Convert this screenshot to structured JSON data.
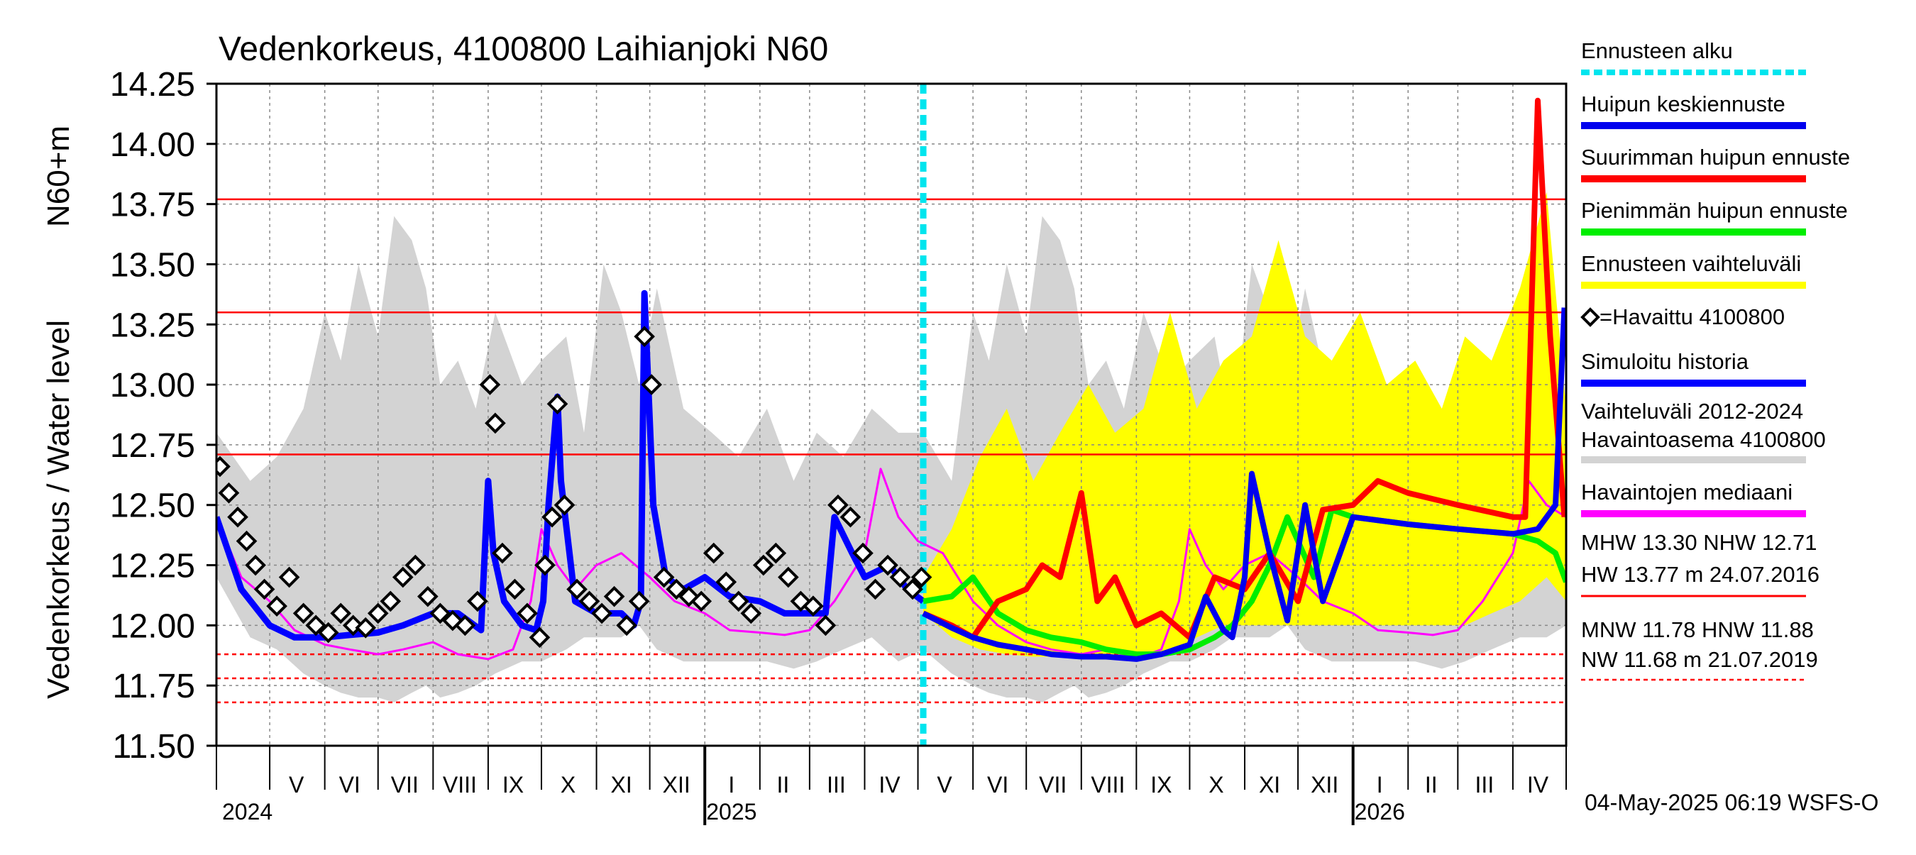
{
  "chart_data": {
    "type": "line",
    "title": "Vedenkorkeus, 4100800 Laihianjoki N60",
    "ylabel": "Vedenkorkeus / Water level",
    "ylabel_unit": "N60+m",
    "ylim": [
      11.5,
      14.25
    ],
    "y_ticks": [
      "11.50",
      "11.75",
      "12.00",
      "12.25",
      "12.50",
      "12.75",
      "13.00",
      "13.25",
      "13.50",
      "13.75",
      "14.00",
      "14.25"
    ],
    "x_range": [
      "2024-04-01",
      "2026-05-01"
    ],
    "forecast_start": "2025-05-04",
    "month_labels": [
      {
        "label": "V",
        "date": "2024-05-16"
      },
      {
        "label": "VI",
        "date": "2024-06-15"
      },
      {
        "label": "VII",
        "date": "2024-07-16"
      },
      {
        "label": "VIII",
        "date": "2024-08-16"
      },
      {
        "label": "IX",
        "date": "2024-09-15"
      },
      {
        "label": "X",
        "date": "2024-10-16"
      },
      {
        "label": "XI",
        "date": "2024-11-15"
      },
      {
        "label": "XII",
        "date": "2024-12-16"
      },
      {
        "label": "I",
        "date": "2025-01-16"
      },
      {
        "label": "II",
        "date": "2025-02-14"
      },
      {
        "label": "III",
        "date": "2025-03-16"
      },
      {
        "label": "IV",
        "date": "2025-04-15"
      },
      {
        "label": "V",
        "date": "2025-05-16"
      },
      {
        "label": "VI",
        "date": "2025-06-15"
      },
      {
        "label": "VII",
        "date": "2025-07-16"
      },
      {
        "label": "VIII",
        "date": "2025-08-16"
      },
      {
        "label": "IX",
        "date": "2025-09-15"
      },
      {
        "label": "X",
        "date": "2025-10-16"
      },
      {
        "label": "XI",
        "date": "2025-11-15"
      },
      {
        "label": "XII",
        "date": "2025-12-16"
      },
      {
        "label": "I",
        "date": "2026-01-16"
      },
      {
        "label": "II",
        "date": "2026-02-14"
      },
      {
        "label": "III",
        "date": "2026-03-16"
      },
      {
        "label": "IV",
        "date": "2026-04-15"
      }
    ],
    "year_labels": [
      {
        "label": "2024",
        "date": "2024-04-01"
      },
      {
        "label": "2025",
        "date": "2025-01-01"
      },
      {
        "label": "2026",
        "date": "2026-01-01"
      }
    ],
    "year_boundaries": [
      "2025-01-01",
      "2026-01-01"
    ],
    "reference_lines": [
      {
        "name": "HW",
        "value": 13.77,
        "style": "solid"
      },
      {
        "name": "MHW",
        "value": 13.3,
        "style": "solid"
      },
      {
        "name": "NHW",
        "value": 12.71,
        "style": "solid"
      },
      {
        "name": "HNW",
        "value": 11.88,
        "style": "dashed"
      },
      {
        "name": "MNW",
        "value": 11.78,
        "style": "dashed"
      },
      {
        "name": "NW",
        "value": 11.68,
        "style": "dashed"
      }
    ],
    "history_band": {
      "x": [
        "2024-04-01",
        "2024-04-20",
        "2024-05-05",
        "2024-05-20",
        "2024-06-01",
        "2024-06-10",
        "2024-06-20",
        "2024-07-01",
        "2024-07-10",
        "2024-07-20",
        "2024-07-28",
        "2024-08-05",
        "2024-08-15",
        "2024-08-25",
        "2024-09-05",
        "2024-09-20",
        "2024-10-01",
        "2024-10-15",
        "2024-10-25",
        "2024-11-05",
        "2024-11-15",
        "2024-11-25",
        "2024-12-05",
        "2024-12-20",
        "2025-01-05",
        "2025-01-20",
        "2025-02-05",
        "2025-02-20",
        "2025-03-05",
        "2025-03-20",
        "2025-04-05",
        "2025-04-20",
        "2025-05-04",
        "2025-05-20",
        "2025-06-01",
        "2025-06-10",
        "2025-06-20",
        "2025-07-01",
        "2025-07-10",
        "2025-07-20",
        "2025-07-28",
        "2025-08-05",
        "2025-08-15",
        "2025-08-25",
        "2025-09-05",
        "2025-09-20",
        "2025-10-01",
        "2025-10-15",
        "2025-10-25",
        "2025-11-05",
        "2025-11-15",
        "2025-11-25",
        "2025-12-05",
        "2025-12-20",
        "2026-01-05",
        "2026-01-20",
        "2026-02-05",
        "2026-02-20",
        "2026-03-05",
        "2026-03-20",
        "2026-04-05",
        "2026-04-20",
        "2026-05-01"
      ],
      "upper": [
        12.8,
        12.6,
        12.7,
        12.9,
        13.3,
        13.1,
        13.5,
        13.2,
        13.7,
        13.6,
        13.4,
        13.0,
        13.1,
        12.9,
        13.3,
        13.0,
        13.1,
        13.2,
        12.8,
        13.5,
        13.3,
        13.0,
        13.4,
        12.9,
        12.8,
        12.7,
        12.9,
        12.6,
        12.8,
        12.7,
        12.9,
        12.8,
        12.8,
        12.6,
        13.3,
        13.1,
        13.5,
        13.2,
        13.7,
        13.6,
        13.4,
        13.0,
        13.1,
        12.9,
        13.3,
        13.0,
        13.1,
        13.2,
        12.8,
        13.5,
        13.3,
        13.0,
        13.4,
        12.9,
        12.8,
        12.7,
        12.9,
        12.6,
        12.8,
        12.7,
        13.0,
        12.9,
        12.8
      ],
      "lower": [
        12.2,
        11.95,
        11.9,
        11.8,
        11.75,
        11.72,
        11.7,
        11.7,
        11.68,
        11.72,
        11.75,
        11.7,
        11.72,
        11.75,
        11.8,
        11.85,
        11.85,
        11.9,
        11.95,
        11.95,
        11.95,
        12.0,
        11.9,
        11.85,
        11.85,
        11.85,
        11.85,
        11.82,
        11.85,
        11.9,
        11.95,
        11.85,
        11.9,
        11.8,
        11.75,
        11.72,
        11.7,
        11.7,
        11.68,
        11.72,
        11.75,
        11.7,
        11.72,
        11.75,
        11.8,
        11.85,
        11.85,
        11.9,
        11.95,
        11.95,
        11.95,
        12.0,
        11.9,
        11.85,
        11.85,
        11.85,
        11.85,
        11.82,
        11.85,
        11.9,
        11.95,
        11.95,
        12.0
      ]
    },
    "forecast_band": {
      "x": [
        "2025-05-04",
        "2025-05-20",
        "2025-06-05",
        "2025-06-20",
        "2025-07-05",
        "2025-07-20",
        "2025-08-05",
        "2025-08-20",
        "2025-09-05",
        "2025-09-20",
        "2025-10-05",
        "2025-10-20",
        "2025-11-05",
        "2025-11-20",
        "2025-12-05",
        "2025-12-20",
        "2026-01-05",
        "2026-01-20",
        "2026-02-05",
        "2026-02-20",
        "2026-03-05",
        "2026-03-20",
        "2026-04-05",
        "2026-04-20",
        "2026-05-01"
      ],
      "upper": [
        12.2,
        12.4,
        12.7,
        12.9,
        12.6,
        12.8,
        13.0,
        12.8,
        12.9,
        13.3,
        12.9,
        13.1,
        13.2,
        13.6,
        13.2,
        13.1,
        13.3,
        13.0,
        13.1,
        12.9,
        13.2,
        13.1,
        13.4,
        13.8,
        12.9
      ],
      "lower": [
        12.05,
        11.95,
        11.9,
        11.88,
        11.87,
        11.87,
        11.87,
        11.87,
        11.87,
        11.88,
        11.95,
        12.0,
        12.0,
        12.0,
        12.0,
        12.0,
        12.0,
        12.0,
        12.0,
        12.0,
        12.0,
        12.05,
        12.1,
        12.2,
        12.1
      ]
    },
    "series": [
      {
        "name": "Havaintojen mediaani",
        "color": "#ff00ff",
        "x": [
          "2024-04-01",
          "2024-04-15",
          "2024-05-01",
          "2024-05-15",
          "2024-06-01",
          "2024-06-15",
          "2024-07-01",
          "2024-07-15",
          "2024-08-01",
          "2024-08-15",
          "2024-09-01",
          "2024-09-15",
          "2024-09-25",
          "2024-10-01",
          "2024-10-10",
          "2024-10-20",
          "2024-11-01",
          "2024-11-15",
          "2024-12-01",
          "2024-12-15",
          "2025-01-01",
          "2025-01-15",
          "2025-02-01",
          "2025-02-15",
          "2025-03-01",
          "2025-03-15",
          "2025-04-01",
          "2025-04-10",
          "2025-04-20",
          "2025-05-01",
          "2025-05-15",
          "2025-06-01",
          "2025-06-15",
          "2025-07-01",
          "2025-07-15",
          "2025-08-01",
          "2025-08-15",
          "2025-09-01",
          "2025-09-15",
          "2025-09-25",
          "2025-10-01",
          "2025-10-10",
          "2025-10-20",
          "2025-11-01",
          "2025-11-15",
          "2025-12-01",
          "2025-12-15",
          "2026-01-01",
          "2026-01-15",
          "2026-02-01",
          "2026-02-15",
          "2026-03-01",
          "2026-03-15",
          "2026-04-01",
          "2026-04-10",
          "2026-04-20",
          "2026-05-01"
        ],
        "y": [
          12.45,
          12.2,
          12.1,
          11.98,
          11.92,
          11.9,
          11.88,
          11.9,
          11.93,
          11.88,
          11.86,
          11.9,
          12.1,
          12.4,
          12.25,
          12.15,
          12.25,
          12.3,
          12.2,
          12.1,
          12.05,
          11.98,
          11.97,
          11.96,
          11.98,
          12.1,
          12.3,
          12.65,
          12.45,
          12.35,
          12.3,
          12.1,
          12.0,
          11.93,
          11.9,
          11.88,
          11.9,
          11.86,
          11.9,
          12.1,
          12.4,
          12.25,
          12.15,
          12.25,
          12.3,
          12.2,
          12.1,
          12.05,
          11.98,
          11.97,
          11.96,
          11.98,
          12.1,
          12.3,
          12.6,
          12.5,
          12.45
        ]
      },
      {
        "name": "Havaittu 4100800",
        "color": "#000000",
        "marker": "diamond",
        "x": [
          "2024-04-03",
          "2024-04-08",
          "2024-04-13",
          "2024-04-18",
          "2024-04-23",
          "2024-04-28",
          "2024-05-05",
          "2024-05-12",
          "2024-05-20",
          "2024-05-27",
          "2024-06-03",
          "2024-06-10",
          "2024-06-17",
          "2024-06-24",
          "2024-07-01",
          "2024-07-08",
          "2024-07-15",
          "2024-07-22",
          "2024-07-29",
          "2024-08-05",
          "2024-08-12",
          "2024-08-19",
          "2024-08-26",
          "2024-09-02",
          "2024-09-05",
          "2024-09-09",
          "2024-09-16",
          "2024-09-23",
          "2024-09-30",
          "2024-10-03",
          "2024-10-07",
          "2024-10-10",
          "2024-10-14",
          "2024-10-21",
          "2024-10-28",
          "2024-11-04",
          "2024-11-11",
          "2024-11-18",
          "2024-11-25",
          "2024-11-28",
          "2024-12-02",
          "2024-12-09",
          "2024-12-16",
          "2024-12-23",
          "2024-12-30",
          "2025-01-06",
          "2025-01-13",
          "2025-01-20",
          "2025-01-27",
          "2025-02-03",
          "2025-02-10",
          "2025-02-17",
          "2025-02-24",
          "2025-03-03",
          "2025-03-10",
          "2025-03-17",
          "2025-03-24",
          "2025-03-31",
          "2025-04-07",
          "2025-04-14",
          "2025-04-21",
          "2025-04-28",
          "2025-05-03"
        ],
        "y": [
          12.66,
          12.55,
          12.45,
          12.35,
          12.25,
          12.15,
          12.08,
          12.2,
          12.05,
          12.0,
          11.97,
          12.05,
          12.0,
          11.99,
          12.05,
          12.1,
          12.2,
          12.25,
          12.12,
          12.05,
          12.02,
          12.0,
          12.1,
          13.0,
          12.84,
          12.3,
          12.15,
          12.05,
          11.95,
          12.25,
          12.45,
          12.92,
          12.5,
          12.15,
          12.1,
          12.05,
          12.12,
          12.0,
          12.1,
          13.2,
          13.0,
          12.2,
          12.15,
          12.12,
          12.1,
          12.3,
          12.18,
          12.1,
          12.05,
          12.25,
          12.3,
          12.2,
          12.1,
          12.08,
          12.0,
          12.5,
          12.45,
          12.3,
          12.15,
          12.25,
          12.2,
          12.15,
          12.2
        ]
      },
      {
        "name": "Simuloitu historia",
        "color": "#0000ff",
        "x": [
          "2024-04-01",
          "2024-04-15",
          "2024-05-01",
          "2024-05-15",
          "2024-06-01",
          "2024-06-15",
          "2024-07-01",
          "2024-07-15",
          "2024-08-01",
          "2024-08-15",
          "2024-08-28",
          "2024-09-01",
          "2024-09-04",
          "2024-09-10",
          "2024-09-20",
          "2024-09-28",
          "2024-10-02",
          "2024-10-05",
          "2024-10-10",
          "2024-10-12",
          "2024-10-20",
          "2024-11-01",
          "2024-11-15",
          "2024-11-22",
          "2024-11-26",
          "2024-11-28",
          "2024-12-03",
          "2024-12-10",
          "2024-12-20",
          "2025-01-01",
          "2025-01-15",
          "2025-02-01",
          "2025-02-15",
          "2025-03-01",
          "2025-03-10",
          "2025-03-15",
          "2025-03-25",
          "2025-04-01",
          "2025-04-15",
          "2025-04-25",
          "2025-05-04"
        ],
        "y": [
          12.45,
          12.15,
          12.0,
          11.95,
          11.95,
          11.96,
          11.97,
          12.0,
          12.05,
          12.05,
          11.98,
          12.6,
          12.3,
          12.1,
          12.0,
          11.98,
          12.1,
          12.5,
          12.95,
          12.6,
          12.1,
          12.05,
          12.05,
          12.0,
          12.1,
          13.38,
          12.5,
          12.2,
          12.15,
          12.2,
          12.12,
          12.1,
          12.05,
          12.05,
          12.05,
          12.45,
          12.3,
          12.2,
          12.25,
          12.15,
          12.1
        ]
      },
      {
        "name": "Pienimmän huipun ennuste",
        "color": "#00ee00",
        "x": [
          "2025-05-04",
          "2025-05-20",
          "2025-06-01",
          "2025-06-15",
          "2025-07-01",
          "2025-07-15",
          "2025-08-01",
          "2025-08-15",
          "2025-09-01",
          "2025-09-15",
          "2025-10-01",
          "2025-10-15",
          "2025-10-25",
          "2025-11-05",
          "2025-11-15",
          "2025-11-25",
          "2025-12-10",
          "2025-12-20",
          "2026-01-01",
          "2026-02-01",
          "2026-03-01",
          "2026-04-01",
          "2026-04-15",
          "2026-04-25",
          "2026-05-01"
        ],
        "y": [
          12.1,
          12.12,
          12.2,
          12.05,
          11.98,
          11.95,
          11.93,
          11.9,
          11.88,
          11.88,
          11.9,
          11.95,
          12.0,
          12.1,
          12.25,
          12.45,
          12.2,
          12.48,
          12.45,
          12.42,
          12.4,
          12.38,
          12.35,
          12.3,
          12.18
        ]
      },
      {
        "name": "Suurimman huipun ennuste",
        "color": "#ff0000",
        "x": [
          "2025-05-04",
          "2025-05-20",
          "2025-06-01",
          "2025-06-15",
          "2025-07-01",
          "2025-07-10",
          "2025-07-20",
          "2025-08-01",
          "2025-08-10",
          "2025-08-20",
          "2025-09-01",
          "2025-09-15",
          "2025-10-01",
          "2025-10-15",
          "2025-11-01",
          "2025-11-15",
          "2025-12-01",
          "2025-12-15",
          "2026-01-01",
          "2026-01-15",
          "2026-02-01",
          "2026-03-01",
          "2026-04-01",
          "2026-04-08",
          "2026-04-15",
          "2026-04-22",
          "2026-04-30"
        ],
        "y": [
          12.05,
          12.0,
          11.95,
          12.1,
          12.15,
          12.25,
          12.2,
          12.55,
          12.1,
          12.2,
          12.0,
          12.05,
          11.95,
          12.2,
          12.15,
          12.3,
          12.1,
          12.48,
          12.5,
          12.6,
          12.55,
          12.5,
          12.45,
          12.45,
          14.18,
          13.2,
          12.45
        ]
      },
      {
        "name": "Huipun keskiennuste",
        "color": "#0000ee",
        "x": [
          "2025-05-04",
          "2025-05-20",
          "2025-06-01",
          "2025-06-15",
          "2025-07-01",
          "2025-07-15",
          "2025-08-01",
          "2025-08-15",
          "2025-09-01",
          "2025-09-15",
          "2025-10-01",
          "2025-10-10",
          "2025-10-20",
          "2025-10-25",
          "2025-11-01",
          "2025-11-05",
          "2025-11-15",
          "2025-11-25",
          "2025-12-05",
          "2025-12-15",
          "2026-01-01",
          "2026-02-01",
          "2026-03-01",
          "2026-04-01",
          "2026-04-15",
          "2026-04-25",
          "2026-04-30"
        ],
        "y": [
          12.05,
          11.99,
          11.95,
          11.92,
          11.9,
          11.88,
          11.87,
          11.87,
          11.86,
          11.88,
          11.92,
          12.12,
          11.98,
          11.95,
          12.2,
          12.63,
          12.3,
          12.02,
          12.5,
          12.1,
          12.45,
          12.42,
          12.4,
          12.38,
          12.4,
          12.5,
          13.32
        ]
      }
    ],
    "legend": [
      {
        "label": "Ennusteen alku",
        "color": "#00e5ee",
        "style": "dashed"
      },
      {
        "label": "Huipun keskiennuste",
        "color": "#0000ee",
        "style": "solid"
      },
      {
        "label": "Suurimman huipun ennuste",
        "color": "#ff0000",
        "style": "solid"
      },
      {
        "label": "Pienimmän huipun ennuste",
        "color": "#00ee00",
        "style": "solid"
      },
      {
        "label": "Ennusteen vaihteluväli",
        "color": "#ffff00",
        "style": "solid"
      },
      {
        "label": "=Havaittu 4100800",
        "color": "#000000",
        "style": "marker"
      },
      {
        "label": "Simuloitu historia",
        "color": "#0000ff",
        "style": "solid"
      },
      {
        "label": "Vaihteluväli 2012-2024",
        "label2": " Havaintoasema 4100800",
        "color": "#d3d3d3",
        "style": "solid"
      },
      {
        "label": "Havaintojen mediaani",
        "color": "#ff00ff",
        "style": "solid"
      }
    ],
    "stats_high": {
      "line1": "MHW  13.30 NHW  12.71",
      "line2": "HW  13.77 m 24.07.2016"
    },
    "stats_low": {
      "line1": "MNW  11.78 HNW  11.88",
      "line2": "NW  11.68 m 21.07.2019"
    },
    "footer": "04-May-2025 06:19 WSFS-O"
  },
  "colors": {
    "history_band": "#d3d3d3",
    "forecast_band": "#ffff00",
    "reference": "#ff0000",
    "forecast_start": "#00e5ee",
    "grid": "#888888"
  }
}
